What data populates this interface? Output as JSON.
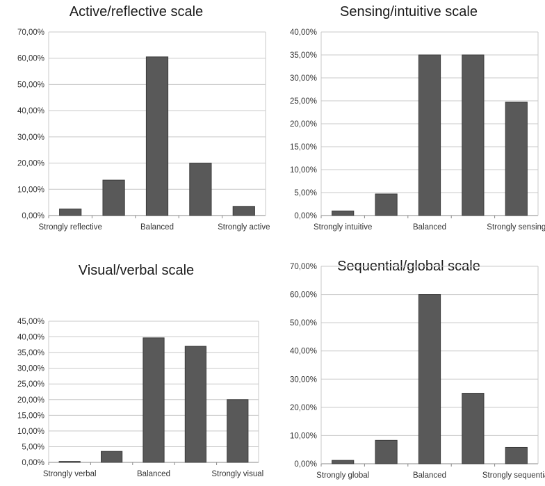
{
  "chart_data": [
    {
      "type": "bar",
      "title": "Active/reflective scale",
      "categories": [
        "Strongly reflective",
        "",
        "Balanced",
        "",
        "Strongly active"
      ],
      "values": [
        2.5,
        13.5,
        60.5,
        20.0,
        3.5
      ],
      "ylim": [
        0,
        70
      ],
      "yticks": [
        "0,00%",
        "10,00%",
        "20,00%",
        "30,00%",
        "40,00%",
        "50,00%",
        "60,00%",
        "70,00%"
      ],
      "grid": true
    },
    {
      "type": "bar",
      "title": "Sensing/intuitive scale",
      "categories": [
        "Strongly intuitive",
        "",
        "Balanced",
        "",
        "Strongly sensing"
      ],
      "values": [
        1.0,
        4.7,
        35.0,
        35.0,
        24.7
      ],
      "ylim": [
        0,
        40
      ],
      "yticks": [
        "0,00%",
        "5,00%",
        "10,00%",
        "15,00%",
        "20,00%",
        "25,00%",
        "30,00%",
        "35,00%",
        "40,00%"
      ],
      "grid": true
    },
    {
      "type": "bar",
      "title": "Visual/verbal scale",
      "categories": [
        "Strongly verbal",
        "",
        "Balanced",
        "",
        "Strongly visual"
      ],
      "values": [
        0.3,
        3.5,
        39.7,
        37.0,
        20.0
      ],
      "ylim": [
        0,
        45
      ],
      "yticks": [
        "0,00%",
        "5,00%",
        "10,00%",
        "15,00%",
        "20,00%",
        "25,00%",
        "30,00%",
        "35,00%",
        "40,00%",
        "45,00%"
      ],
      "grid": true
    },
    {
      "type": "bar",
      "title": "Sequential/global scale",
      "categories": [
        "Strongly global",
        "",
        "Balanced",
        "",
        "Strongly sequential"
      ],
      "values": [
        1.2,
        8.3,
        60.0,
        25.0,
        5.8
      ],
      "ylim": [
        0,
        70
      ],
      "yticks": [
        "0,00%",
        "10,00%",
        "20,00%",
        "30,00%",
        "40,00%",
        "50,00%",
        "60,00%",
        "70,00%"
      ],
      "grid": true
    }
  ],
  "colors": {
    "bar": "#595959",
    "grid": "#c8c8c8",
    "axis": "#888888"
  }
}
